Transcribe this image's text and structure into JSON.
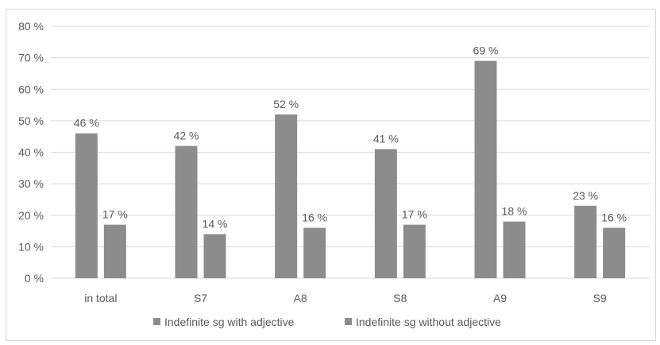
{
  "chart_data": {
    "type": "bar",
    "categories": [
      "in total",
      "S7",
      "A8",
      "S8",
      "A9",
      "S9"
    ],
    "series": [
      {
        "name": "Indefinite sg with adjective",
        "values": [
          46,
          42,
          52,
          41,
          69,
          23
        ],
        "labels": [
          "46 %",
          "42 %",
          "52 %",
          "41 %",
          "69 %",
          "23 %"
        ],
        "color": "#8c8c8c"
      },
      {
        "name": "Indefinite sg without adjective",
        "values": [
          17,
          14,
          16,
          17,
          18,
          16
        ],
        "labels": [
          "17 %",
          "14 %",
          "16 %",
          "17 %",
          "18 %",
          "16 %"
        ],
        "color": "#8c8c8c"
      }
    ],
    "ylim": [
      0,
      80
    ],
    "yticks": [
      "0 %",
      "10 %",
      "20 %",
      "30 %",
      "40 %",
      "50 %",
      "60 %",
      "70 %",
      "80 %"
    ],
    "grid": true,
    "legend_position": "bottom"
  }
}
